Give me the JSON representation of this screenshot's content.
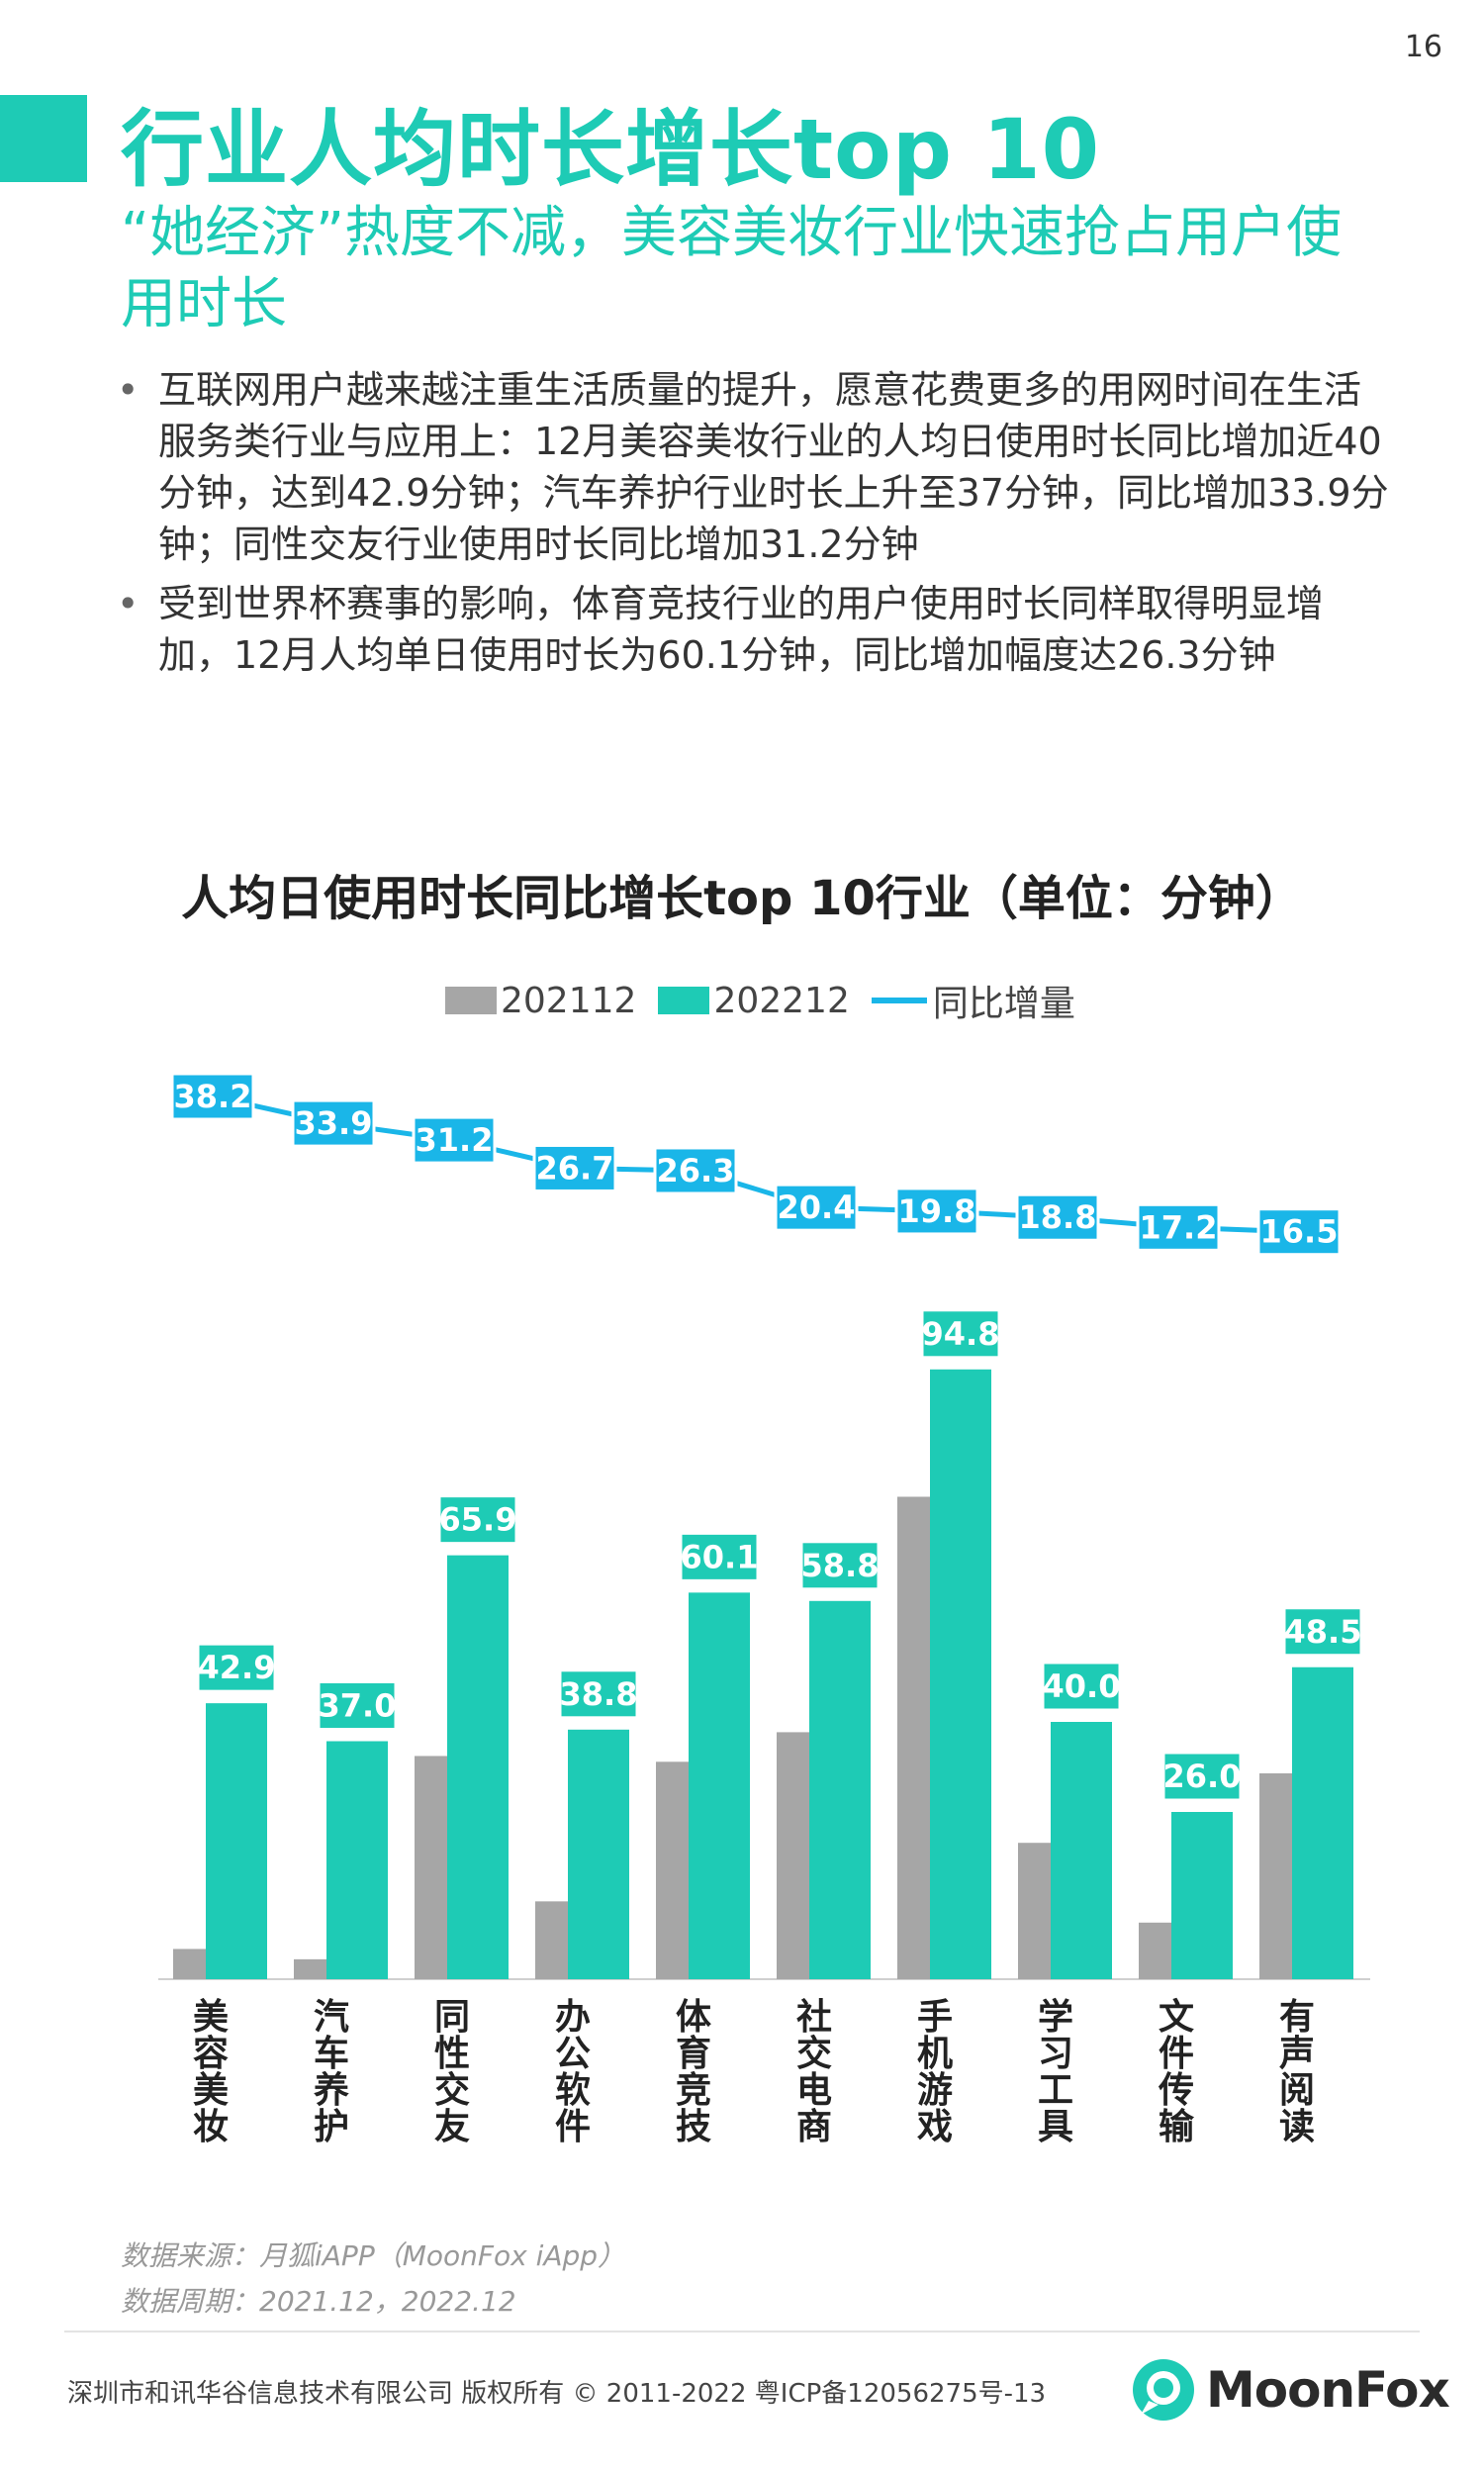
{
  "page_number": "16",
  "header": {
    "title": "行业人均时长增长top 10",
    "subtitle": "“她经济”热度不减，美容美妆行业快速抢占用户使用时长"
  },
  "bullets": [
    "互联网用户越来越注重生活质量的提升，愿意花费更多的用网时间在生活服务类行业与应用上：12月美容美妆行业的人均日使用时长同比增加近40分钟，达到42.9分钟；汽车养护行业时长上升至37分钟，同比增加33.9分钟；同性交友行业使用时长同比增加31.2分钟",
    "受到世界杯赛事的影响，体育竞技行业的用户使用时长同样取得明显增加，12月人均单日使用时长为60.1分钟，同比增加幅度达26.3分钟"
  ],
  "colors": {
    "accent": "#1ecbb5",
    "gray_bar": "#a6a6a6",
    "line": "#1ab6e8"
  },
  "chart_data": {
    "type": "bar",
    "title": "人均日使用时长同比增长top 10行业（单位：分钟）",
    "categories": [
      "美容美妆",
      "汽车养护",
      "同性交友",
      "办公软件",
      "体育竞技",
      "社交电商",
      "手机游戏",
      "学习工具",
      "文件传输",
      "有声阅读"
    ],
    "series": [
      {
        "name": "202112",
        "type": "bar",
        "values": [
          4.7,
          3.1,
          34.7,
          12.1,
          33.8,
          38.4,
          75.0,
          21.2,
          8.8,
          32.0
        ]
      },
      {
        "name": "202212",
        "type": "bar",
        "values": [
          42.9,
          37.0,
          65.9,
          38.8,
          60.1,
          58.8,
          94.8,
          40.0,
          26.0,
          48.5
        ]
      },
      {
        "name": "同比增量",
        "type": "line",
        "values": [
          38.2,
          33.9,
          31.2,
          26.7,
          26.3,
          20.4,
          19.8,
          18.8,
          17.2,
          16.5
        ]
      }
    ],
    "value_labels_202212": [
      "42.9",
      "37.0",
      "65.9",
      "38.8",
      "60.1",
      "58.8",
      "94.8",
      "40.0",
      "26.0",
      "48.5"
    ],
    "value_labels_increase": [
      "38.2",
      "33.9",
      "31.2",
      "26.7",
      "26.3",
      "20.4",
      "19.8",
      "18.8",
      "17.2",
      "16.5"
    ],
    "legend_position": "top-center",
    "grid": false
  },
  "source": {
    "data_source": "数据来源：月狐iAPP（MoonFox iApp）",
    "data_period": "数据周期：2021.12，2022.12"
  },
  "footer": {
    "copyright": "深圳市和讯华谷信息技术有限公司 版权所有 © 2011-2022 粤ICP备12056275号-13",
    "logo_text": "MoonFox"
  }
}
